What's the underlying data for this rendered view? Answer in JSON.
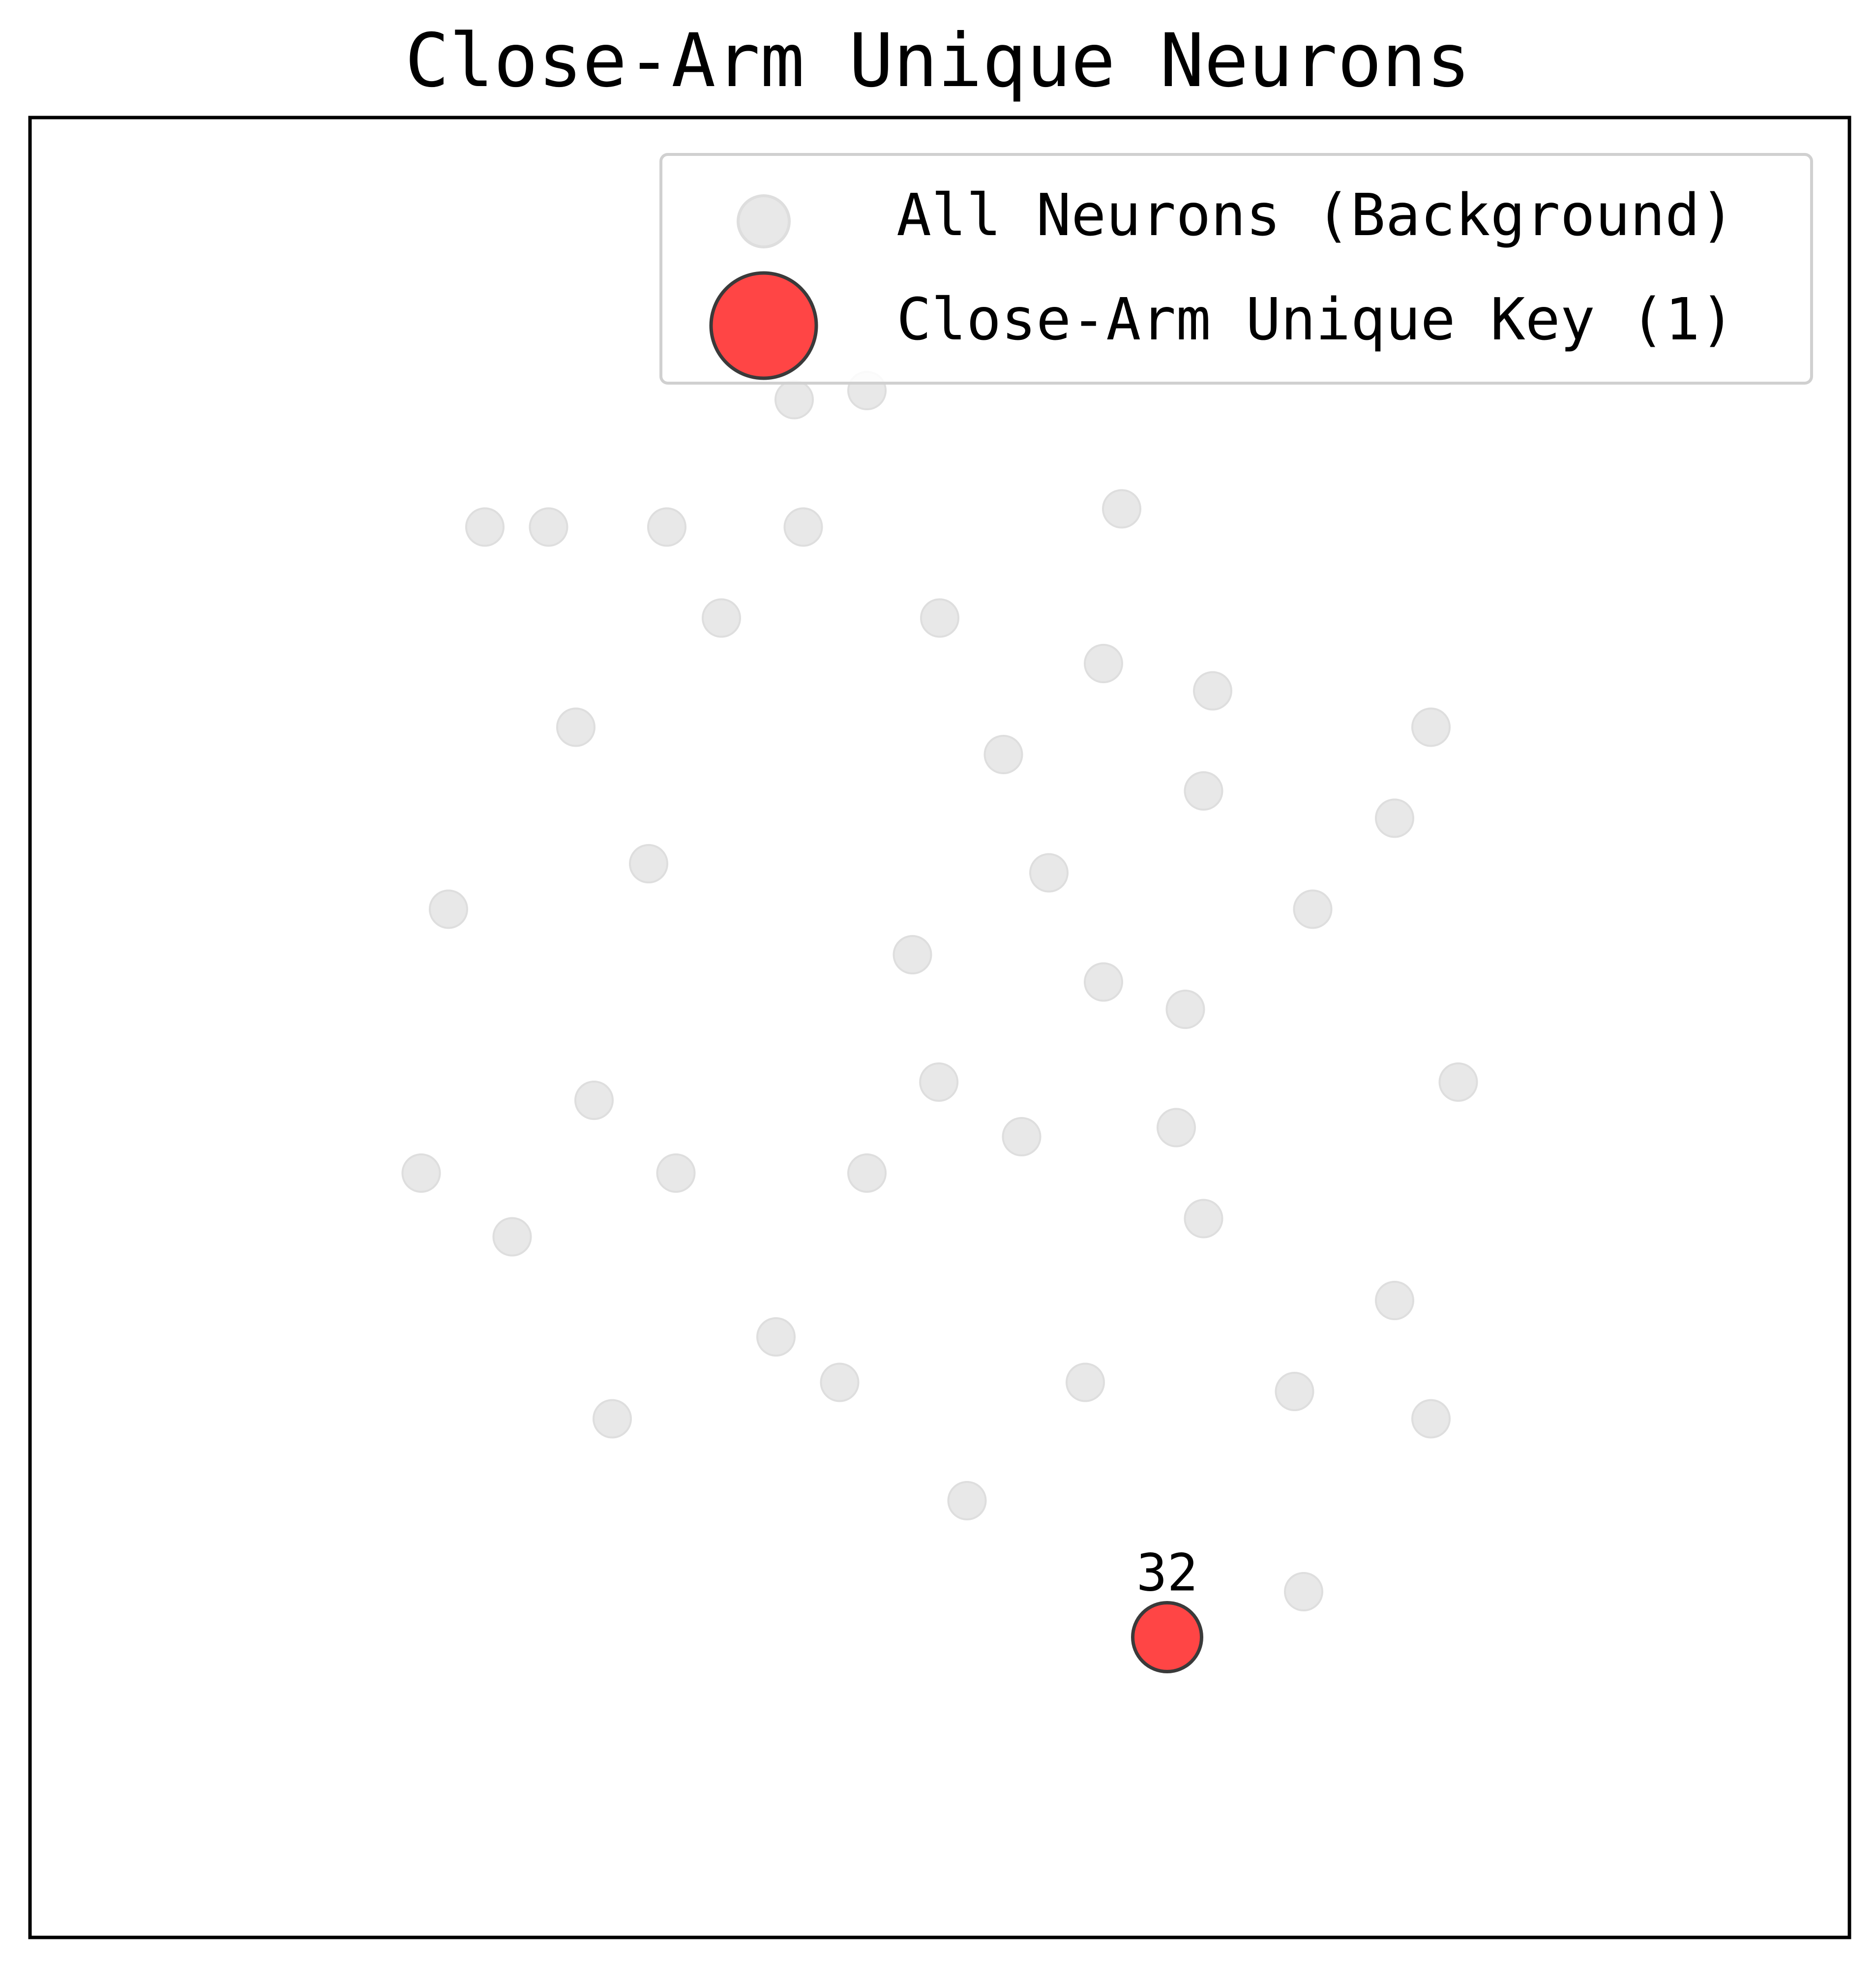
{
  "chart_data": {
    "type": "scatter",
    "title": "Close-Arm Unique Neurons",
    "xlabel": "",
    "ylabel": "",
    "xlim": [
      -10,
      10
    ],
    "ylim": [
      -10,
      10
    ],
    "axes_visible": false,
    "grid": false,
    "legend": {
      "placement": "top-right",
      "entries": [
        {
          "label": "All Neurons (Background)",
          "series": "background"
        },
        {
          "label": "Close-Arm Unique Key (1)",
          "series": "highlight"
        }
      ]
    },
    "series": [
      {
        "key": "background",
        "color": "#e8e8e8",
        "edge_color": "#dedede",
        "points": [
          {
            "x": -0.8,
            "y": 7.0
          },
          {
            "x": -5.0,
            "y": 5.5
          },
          {
            "x": -4.3,
            "y": 5.5
          },
          {
            "x": -3.0,
            "y": 5.5
          },
          {
            "x": -1.5,
            "y": 5.5
          },
          {
            "x": -1.6,
            "y": 6.9
          },
          {
            "x": 2.0,
            "y": 5.7
          },
          {
            "x": -2.4,
            "y": 4.5
          },
          {
            "x": 0.0,
            "y": 4.5
          },
          {
            "x": 1.8,
            "y": 4.0
          },
          {
            "x": 3.0,
            "y": 3.7
          },
          {
            "x": 5.4,
            "y": 3.3
          },
          {
            "x": -4.0,
            "y": 3.3
          },
          {
            "x": 0.7,
            "y": 3.0
          },
          {
            "x": 2.9,
            "y": 2.6
          },
          {
            "x": 5.0,
            "y": 2.3
          },
          {
            "x": -3.2,
            "y": 1.8
          },
          {
            "x": 1.2,
            "y": 1.7
          },
          {
            "x": -5.4,
            "y": 1.3
          },
          {
            "x": 4.1,
            "y": 1.3
          },
          {
            "x": -0.3,
            "y": 0.8
          },
          {
            "x": 1.8,
            "y": 0.5
          },
          {
            "x": 2.7,
            "y": 0.2
          },
          {
            "x": -3.8,
            "y": -0.8
          },
          {
            "x": -0.01,
            "y": -0.6
          },
          {
            "x": 5.7,
            "y": -0.6
          },
          {
            "x": 0.9,
            "y": -1.2
          },
          {
            "x": 2.6,
            "y": -1.1
          },
          {
            "x": -5.7,
            "y": -1.6
          },
          {
            "x": -2.9,
            "y": -1.6
          },
          {
            "x": -0.8,
            "y": -1.6
          },
          {
            "x": -4.7,
            "y": -2.3
          },
          {
            "x": 2.9,
            "y": -2.1
          },
          {
            "x": 5.0,
            "y": -3.0
          },
          {
            "x": -1.8,
            "y": -3.4
          },
          {
            "x": -1.1,
            "y": -3.9
          },
          {
            "x": 1.6,
            "y": -3.9
          },
          {
            "x": -3.6,
            "y": -4.3
          },
          {
            "x": 3.9,
            "y": -4.0
          },
          {
            "x": 5.4,
            "y": -4.3
          },
          {
            "x": 0.3,
            "y": -5.2
          },
          {
            "x": 4.0,
            "y": -6.2
          }
        ]
      },
      {
        "key": "highlight",
        "color": "#ff4545",
        "edge_color": "#3a3a3a",
        "points": [
          {
            "x": 2.5,
            "y": -6.7,
            "label": "32"
          }
        ]
      }
    ]
  }
}
